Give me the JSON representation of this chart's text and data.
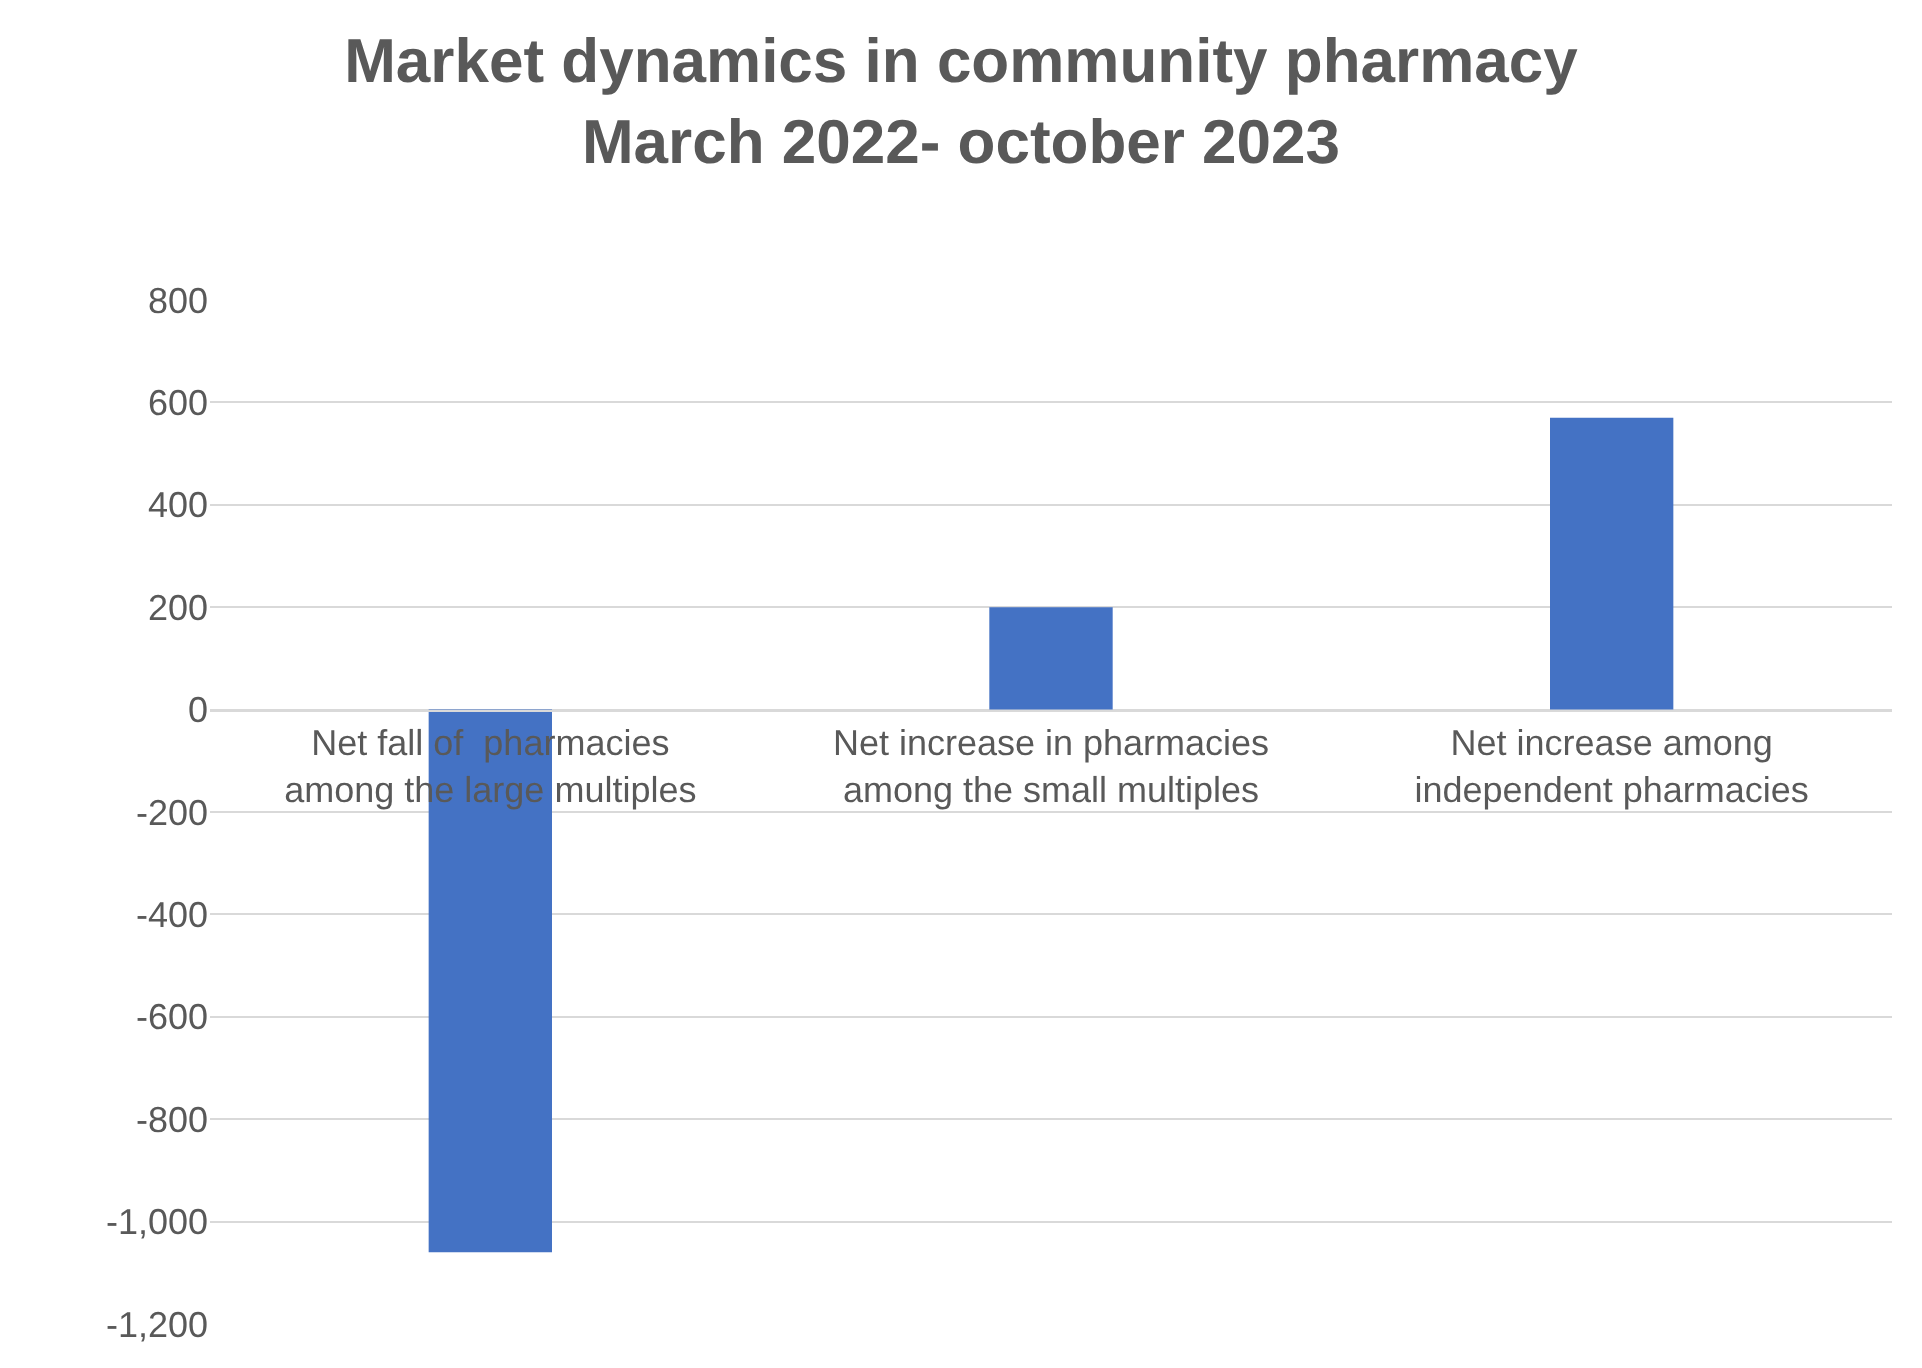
{
  "chart_data": {
    "type": "bar",
    "title": "Market dynamics in community pharmacy\nMarch 2022- october 2023",
    "categories": [
      "Net fall of  pharmacies among the large multiples",
      "Net increase in pharmacies among the small multiples",
      "Net increase among independent pharmacies"
    ],
    "values": [
      -1060,
      200,
      570
    ],
    "color": "#4472c4",
    "ylim": [
      -1200,
      800
    ],
    "yticks": [
      {
        "value": -1200,
        "label": "-1,200"
      },
      {
        "value": -1000,
        "label": "-1,000"
      },
      -800,
      -600,
      -400,
      -200,
      0,
      200,
      400,
      600,
      800
    ],
    "grid": "y",
    "legend": false
  }
}
